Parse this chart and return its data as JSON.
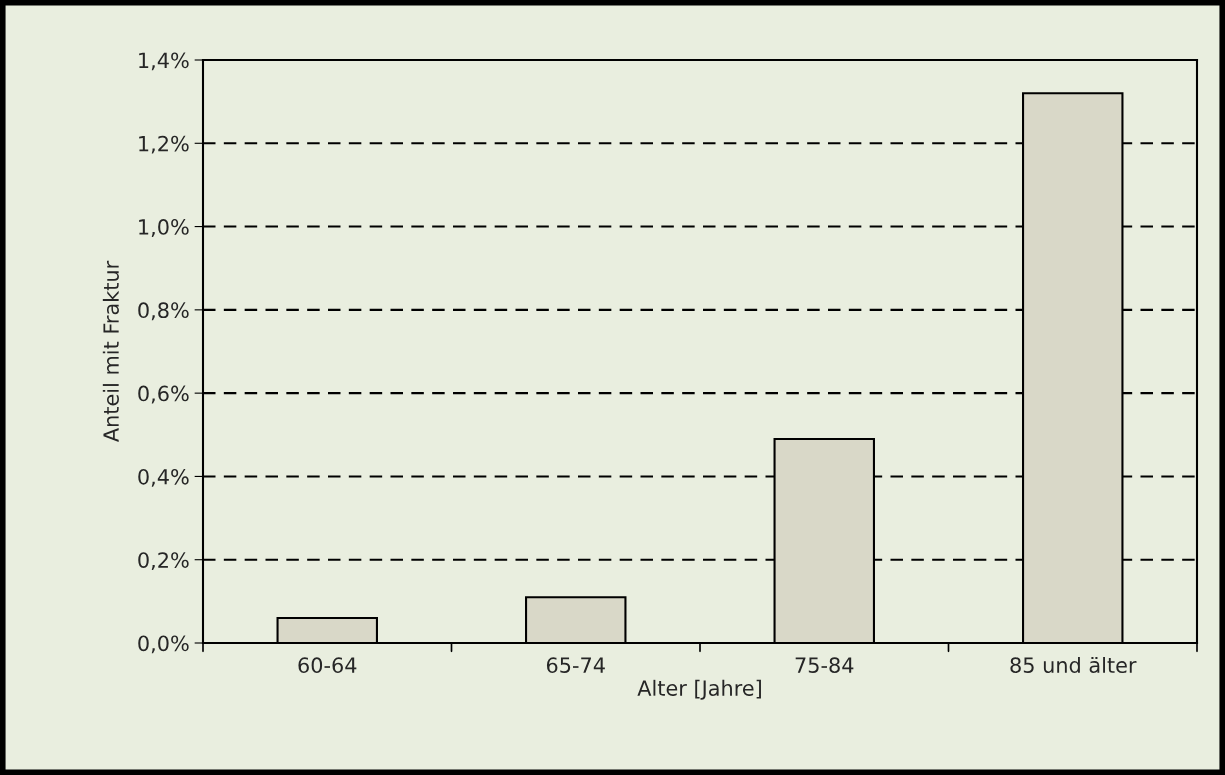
{
  "chart_data": {
    "type": "bar",
    "xlabel": "Alter [Jahre]",
    "ylabel": "Anteil mit Fraktur",
    "categories": [
      "60-64",
      "65-74",
      "75-84",
      "85 und älter"
    ],
    "values": [
      0.06,
      0.11,
      0.49,
      1.32
    ],
    "color": "#d9d8c8",
    "ylim": [
      0,
      1.4
    ],
    "yticks": [
      {
        "value": 0,
        "label": "0,0%"
      },
      {
        "value": 0.2,
        "label": "0,2%"
      },
      {
        "value": 0.4,
        "label": "0,4%"
      },
      {
        "value": 0.6,
        "label": "0,6%"
      },
      {
        "value": 0.8,
        "label": "0,8%"
      },
      {
        "value": 1.0,
        "label": "1,0%"
      },
      {
        "value": 1.2,
        "label": "1,2%"
      },
      {
        "value": 1.4,
        "label": "1,4%"
      }
    ],
    "grid": "y",
    "legend": false
  }
}
